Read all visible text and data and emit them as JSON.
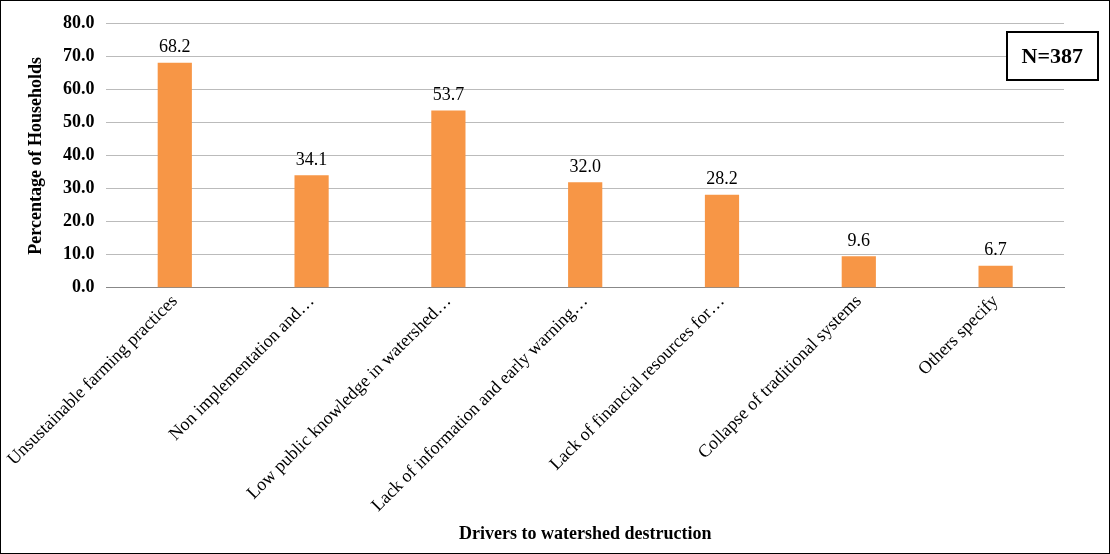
{
  "chart_data": {
    "type": "bar",
    "xlabel": "Drivers to watershed destruction",
    "ylabel": "Percentage of Households",
    "categories": [
      "Unsustainable farming practices",
      "Non implementation and…",
      "Low public knowledge in watershed…",
      "Lack of information and early warning…",
      "Lack of financial resources for…",
      "Collapse of traditional systems",
      "Others specify"
    ],
    "values": [
      68.2,
      34.1,
      53.7,
      32.0,
      28.2,
      9.6,
      6.7
    ],
    "color": "#f79646",
    "ylim": [
      0,
      80
    ],
    "yticks": [
      {
        "value": 0,
        "label": "0.0"
      },
      {
        "value": 10,
        "label": "10.0"
      },
      {
        "value": 20,
        "label": "20.0"
      },
      {
        "value": 30,
        "label": "30.0"
      },
      {
        "value": 40,
        "label": "40.0"
      },
      {
        "value": 50,
        "label": "50.0"
      },
      {
        "value": 60,
        "label": "60.0"
      },
      {
        "value": 70,
        "label": "70.0"
      },
      {
        "value": 80,
        "label": "80.0"
      }
    ],
    "grid": "y",
    "legend": false,
    "data_labels": true,
    "value_labels": [
      "68.2",
      "34.1",
      "53.7",
      "32.0",
      "28.2",
      "9.6",
      "6.7"
    ],
    "annotations": [
      "N=387"
    ]
  }
}
